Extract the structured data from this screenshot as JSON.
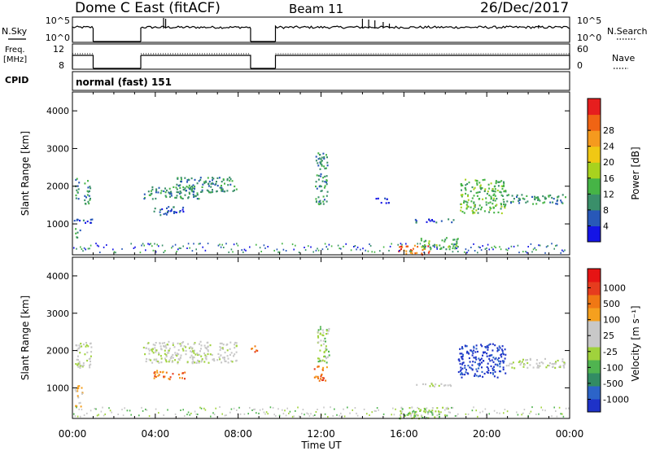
{
  "header": {
    "radar": "Dome C East (fitACF)",
    "beam": "Beam 11",
    "date": "26/Dec/2017"
  },
  "chart_data": [
    {
      "type": "line",
      "panel": "noise",
      "left_label": "N.Sky",
      "right_label": "N.Search",
      "left_ticks": [
        "10^5",
        "10^0"
      ],
      "right_ticks": [
        "10^5",
        "10^0"
      ],
      "scale": "log",
      "segments_hours": [
        [
          0.0,
          1.0
        ],
        [
          3.3,
          8.6
        ],
        [
          9.8,
          24.0
        ]
      ]
    },
    {
      "type": "line",
      "panel": "frequency",
      "left_label": "Freq.",
      "left_unit": "[MHz]",
      "right_label": "Nave",
      "left_ticks": [
        "12",
        "8"
      ],
      "right_ticks": [
        "60",
        "0"
      ],
      "segments_hours": [
        [
          0.0,
          1.0
        ],
        [
          3.3,
          8.6
        ],
        [
          9.8,
          24.0
        ]
      ]
    },
    {
      "type": "table",
      "panel": "cpid",
      "label": "CPID",
      "value": "normal (fast) 151"
    },
    {
      "type": "heatmap",
      "panel": "power",
      "ylabel": "Slant Range [km]",
      "ylim": [
        180,
        4500
      ],
      "yticks": [
        "1000",
        "2000",
        "3000",
        "4000"
      ],
      "xlim": [
        0,
        24
      ],
      "colorbar_label": "Power [dB]",
      "colorbar_ticks": [
        "4",
        "8",
        "12",
        "16",
        "20",
        "24",
        "28"
      ],
      "colorbar_colors": [
        "#1414e6",
        "#2858b8",
        "#3a8f6a",
        "#46b446",
        "#a8d21e",
        "#f0c814",
        "#f59a1e",
        "#f06414",
        "#e61e1e"
      ],
      "echo_regions": [
        {
          "t0": 0.1,
          "t1": 0.3,
          "r0": 1550,
          "r1": 2250,
          "level": 2
        },
        {
          "t0": 0.55,
          "t1": 0.9,
          "r0": 1550,
          "r1": 2200,
          "level": 2
        },
        {
          "t0": 0.05,
          "t1": 1.0,
          "r0": 1000,
          "r1": 1150,
          "level": 1
        },
        {
          "t0": 0.1,
          "t1": 0.4,
          "r0": 650,
          "r1": 900,
          "level": 2
        },
        {
          "t0": 3.4,
          "t1": 6.1,
          "r0": 1680,
          "r1": 2000,
          "level": 2
        },
        {
          "t0": 5.0,
          "t1": 7.9,
          "r0": 1850,
          "r1": 2260,
          "level": 2
        },
        {
          "t0": 3.9,
          "t1": 5.4,
          "r0": 1250,
          "r1": 1480,
          "level": 1
        },
        {
          "t0": 11.7,
          "t1": 12.3,
          "r0": 1500,
          "r1": 2900,
          "level": 2
        },
        {
          "t0": 14.6,
          "t1": 15.3,
          "r0": 1550,
          "r1": 1700,
          "level": 1
        },
        {
          "t0": 16.5,
          "t1": 18.4,
          "r0": 1050,
          "r1": 1150,
          "level": 1
        },
        {
          "t0": 18.7,
          "t1": 20.9,
          "r0": 1300,
          "r1": 2200,
          "level": 3
        },
        {
          "t0": 20.9,
          "t1": 23.8,
          "r0": 1550,
          "r1": 1800,
          "level": 2
        },
        {
          "t0": 15.7,
          "t1": 17.2,
          "r0": 200,
          "r1": 450,
          "level": 7
        },
        {
          "t0": 16.8,
          "t1": 18.6,
          "r0": 350,
          "r1": 650,
          "level": 3
        }
      ]
    },
    {
      "type": "heatmap",
      "panel": "velocity",
      "ylabel": "Slant Range [km]",
      "ylim": [
        180,
        4500
      ],
      "yticks": [
        "1000",
        "2000",
        "3000",
        "4000"
      ],
      "xlim": [
        0,
        24
      ],
      "xticks": [
        "00:00",
        "04:00",
        "08:00",
        "12:00",
        "16:00",
        "20:00",
        "00:00"
      ],
      "xlabel": "Time UT",
      "colorbar_label": "Velocity [m s⁻¹]",
      "colorbar_ticks": [
        "1000",
        "500",
        "100",
        "25",
        "-25",
        "-100",
        "-500",
        "-1000"
      ],
      "colorbar_colors": [
        "#1e32c8",
        "#2c64c8",
        "#328c64",
        "#50b450",
        "#a0d23c",
        "#c8c8c8",
        "#c8c8c8",
        "#f5a01e",
        "#f07814",
        "#e63c1e",
        "#e61414"
      ],
      "echo_regions": [
        {
          "t0": 0.1,
          "t1": 0.9,
          "r0": 1550,
          "r1": 2250,
          "level": 5
        },
        {
          "t0": 0.1,
          "t1": 0.5,
          "r0": 500,
          "r1": 1100,
          "level": 7
        },
        {
          "t0": 3.4,
          "t1": 7.9,
          "r0": 1680,
          "r1": 2260,
          "level": 5
        },
        {
          "t0": 3.9,
          "t1": 5.4,
          "r0": 1250,
          "r1": 1480,
          "level": 8
        },
        {
          "t0": 8.6,
          "t1": 8.9,
          "r0": 1950,
          "r1": 2150,
          "level": 8
        },
        {
          "t0": 11.6,
          "t1": 12.3,
          "r0": 1200,
          "r1": 1600,
          "level": 8
        },
        {
          "t0": 11.8,
          "t1": 12.4,
          "r0": 1700,
          "r1": 2700,
          "level": 4
        },
        {
          "t0": 18.6,
          "t1": 20.9,
          "r0": 1300,
          "r1": 2200,
          "level": 0
        },
        {
          "t0": 20.9,
          "t1": 23.8,
          "r0": 1550,
          "r1": 1800,
          "level": 5
        },
        {
          "t0": 15.7,
          "t1": 18.2,
          "r0": 200,
          "r1": 500,
          "level": 4
        },
        {
          "t0": 16.5,
          "t1": 18.4,
          "r0": 1050,
          "r1": 1150,
          "level": 5
        }
      ]
    }
  ]
}
